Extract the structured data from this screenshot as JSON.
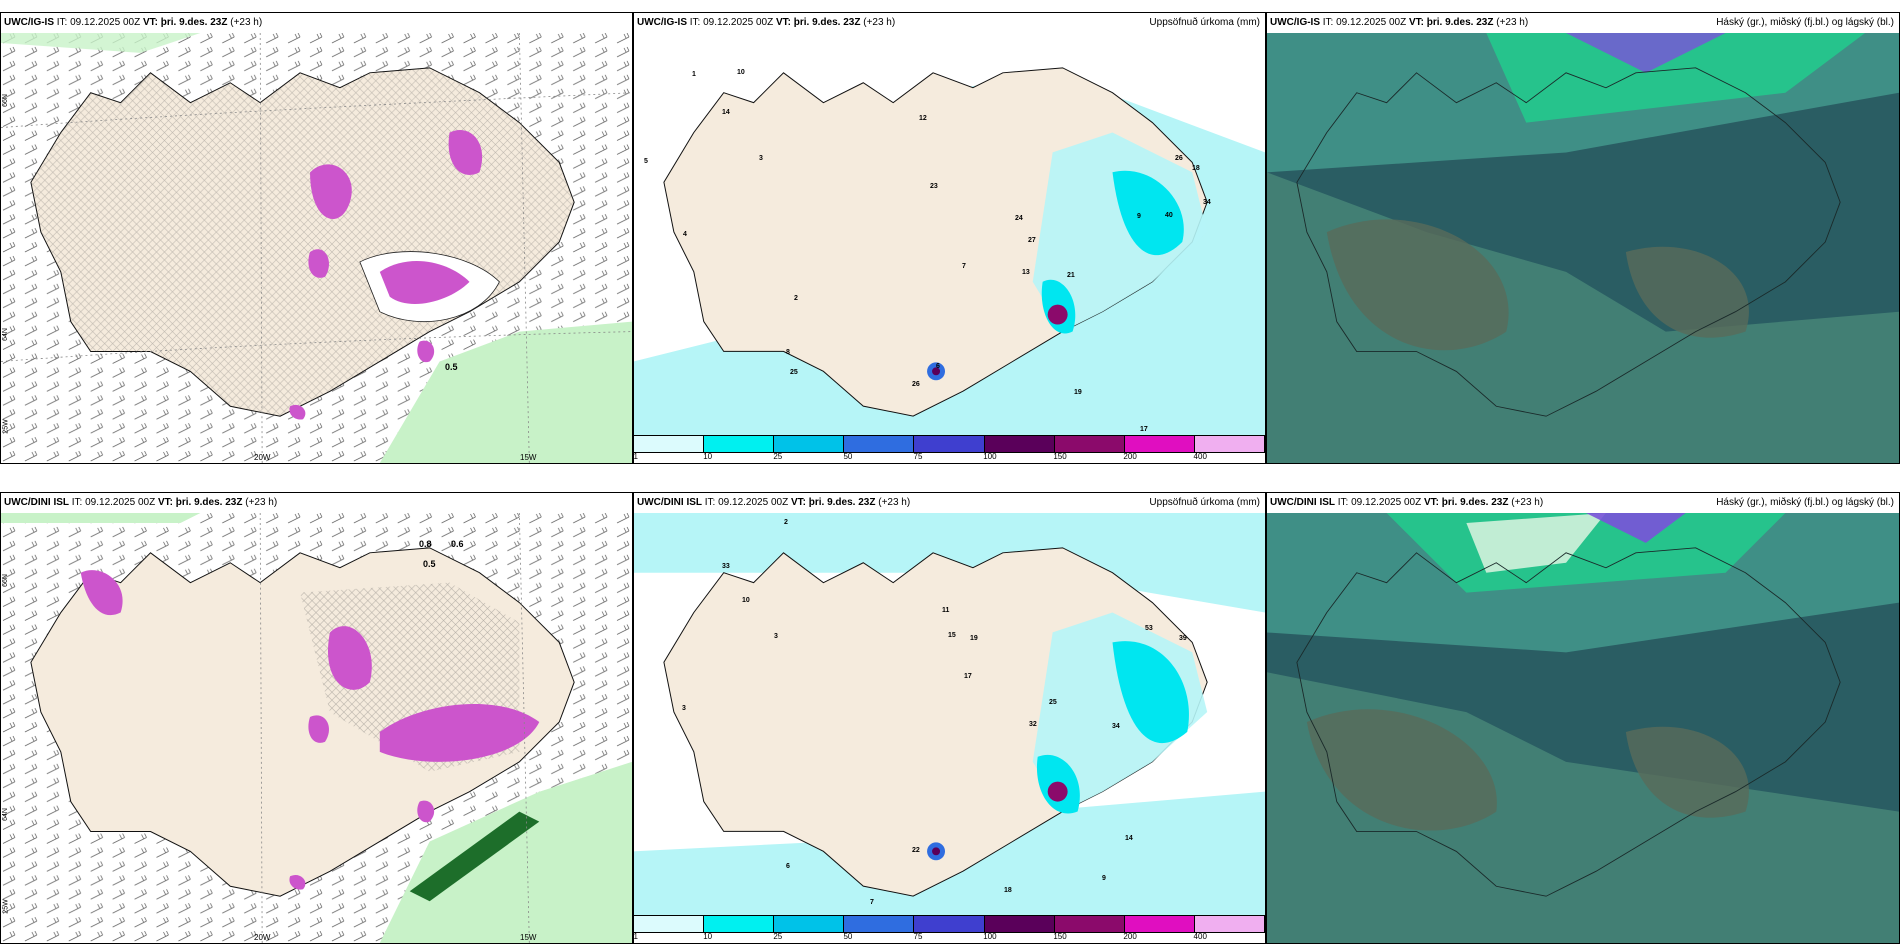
{
  "panels": {
    "p1": {
      "model": "UWC/IG-IS",
      "it_label": "IT:",
      "it": "09.12.2025 00Z",
      "vt_label": "VT:",
      "vt": "þri. 9.des. 23Z",
      "lead": "(+23 h)",
      "right_title": ""
    },
    "p2": {
      "model": "UWC/IG-IS",
      "it_label": "IT:",
      "it": "09.12.2025 00Z",
      "vt_label": "VT:",
      "vt": "þri. 9.des. 23Z",
      "lead": "(+23 h)",
      "right_title": "Uppsöfnuð úrkoma (mm)"
    },
    "p3": {
      "model": "UWC/IG-IS",
      "it_label": "IT:",
      "it": "09.12.2025 00Z",
      "vt_label": "VT:",
      "vt": "þri. 9.des. 23Z",
      "lead": "(+23 h)",
      "right_title": "Háský (gr.), miðský (fj.bl.) og lágský (bl.)"
    },
    "p4": {
      "model": "UWC/DINI ISL",
      "it_label": "IT:",
      "it": "09.12.2025 00Z",
      "vt_label": "VT:",
      "vt": "þri. 9.des. 23Z",
      "lead": "(+23 h)",
      "right_title": ""
    },
    "p5": {
      "model": "UWC/DINI ISL",
      "it_label": "IT:",
      "it": "09.12.2025 00Z",
      "vt_label": "VT:",
      "vt": "þri. 9.des. 23Z",
      "lead": "(+23 h)",
      "right_title": "Uppsöfnuð úrkoma (mm)"
    },
    "p6": {
      "model": "UWC/DINI ISL",
      "it_label": "IT:",
      "it": "09.12.2025 00Z",
      "vt_label": "VT:",
      "vt": "þri. 9.des. 23Z",
      "lead": "(+23 h)",
      "right_title": "Háský (gr.), miðský (fj.bl.) og lágský (bl.)"
    }
  },
  "axes": {
    "lon_20": "20W",
    "lon_15": "15W",
    "lat_66": "66N",
    "lat_64": "64N",
    "lon_25": "25W"
  },
  "wind_labels": {
    "p1_value": "0.5",
    "p4_value_a": "0.8",
    "p4_value_b": "0.6",
    "p4_value_c": "0.5"
  },
  "precip_legend": {
    "ticks": [
      "1",
      "10",
      "25",
      "50",
      "75",
      "100",
      "150",
      "200",
      "400"
    ],
    "colors": [
      "#dcfbfd",
      "#00f0f0",
      "#00c2e8",
      "#2f6de0",
      "#3f3fcf",
      "#5a005a",
      "#8b0a6b",
      "#e00ec0",
      "#f0aff0"
    ]
  },
  "precip_values": {
    "p2": [
      "1",
      "10",
      "25",
      "14",
      "7",
      "3",
      "2",
      "5",
      "4",
      "6",
      "26",
      "19",
      "8",
      "17",
      "12",
      "23",
      "24",
      "27",
      "21",
      "40",
      "26",
      "18",
      "34",
      "9",
      "13"
    ],
    "p5": [
      "2",
      "33",
      "10",
      "3",
      "11",
      "15",
      "19",
      "17",
      "25",
      "32",
      "34",
      "53",
      "39",
      "14",
      "22",
      "18",
      "9",
      "3",
      "6",
      "7"
    ]
  },
  "colors": {
    "land": "#f5ebdd",
    "ocean": "#ffffff",
    "precip_light": "#b6f5f7",
    "precip_mid": "#00e6f0",
    "cloud_dark": "#2a5d63",
    "cloud_mid": "#3f8f86",
    "cloud_high": "#7a52d9",
    "wind_shade": "#c8f2c8",
    "icing": "#cc55cc"
  }
}
